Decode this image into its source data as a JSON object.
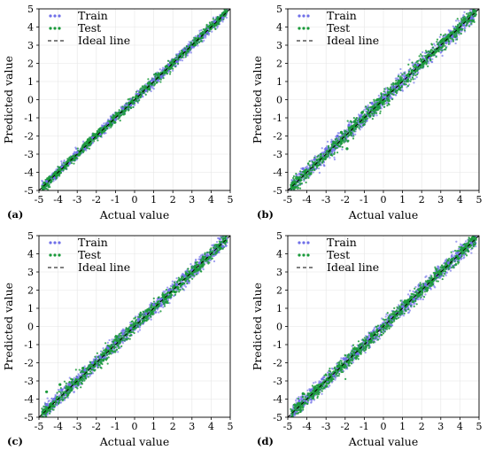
{
  "chart_data": [
    {
      "type": "scatter",
      "panel_label": "(a)",
      "xlabel": "Actual value",
      "ylabel": "Predicted value",
      "xlim": [
        -5,
        5
      ],
      "ylim": [
        -5,
        5
      ],
      "xticks": [
        -5,
        -4,
        -3,
        -2,
        -1,
        0,
        1,
        2,
        3,
        4,
        5
      ],
      "yticks": [
        -5,
        -4,
        -3,
        -2,
        -1,
        0,
        1,
        2,
        3,
        4,
        5
      ],
      "grid": true,
      "legend_position": "top-left",
      "series": [
        {
          "name": "Train",
          "color": "#6f6fe8",
          "marker": "dot",
          "x": [
            -4.6,
            -4.2,
            -3.8,
            -3.4,
            -3.0,
            -2.6,
            -2.2,
            -1.8,
            -1.4,
            -1.0,
            -0.6,
            -0.2,
            0.2,
            0.6,
            1.0,
            1.4,
            1.8,
            2.2,
            2.6,
            3.0,
            3.4,
            3.8,
            4.2,
            4.6
          ],
          "y": [
            -4.5,
            -4.3,
            -3.7,
            -3.5,
            -2.9,
            -2.7,
            -2.1,
            -1.9,
            -1.3,
            -1.1,
            -0.5,
            -0.3,
            0.3,
            0.5,
            1.1,
            1.3,
            1.9,
            2.1,
            2.7,
            2.9,
            3.5,
            3.7,
            4.3,
            4.5
          ]
        },
        {
          "name": "Test",
          "color": "#1a9a3a",
          "marker": "dot",
          "x": [
            -4.7,
            -4.1,
            -3.5,
            -2.9,
            -2.3,
            -1.7,
            -1.1,
            -0.5,
            0.1,
            0.7,
            1.3,
            1.9,
            2.5,
            3.1,
            3.7,
            4.3,
            4.7
          ],
          "y": [
            -4.6,
            -4.2,
            -3.4,
            -3.0,
            -2.2,
            -1.8,
            -1.0,
            -0.6,
            0.2,
            0.6,
            1.4,
            1.8,
            2.6,
            3.0,
            3.8,
            4.2,
            4.8
          ]
        },
        {
          "name": "Ideal line",
          "color": "#000000",
          "style": "dashed",
          "x": [
            -5,
            5
          ],
          "y": [
            -5,
            5
          ]
        }
      ]
    },
    {
      "type": "scatter",
      "panel_label": "(b)",
      "xlabel": "Actual value",
      "ylabel": "Predicted value",
      "xlim": [
        -5,
        5
      ],
      "ylim": [
        -5,
        5
      ],
      "xticks": [
        -5,
        -4,
        -3,
        -2,
        -1,
        0,
        1,
        2,
        3,
        4,
        5
      ],
      "yticks": [
        -5,
        -4,
        -3,
        -2,
        -1,
        0,
        1,
        2,
        3,
        4,
        5
      ],
      "grid": true,
      "legend_position": "top-left",
      "series": [
        {
          "name": "Train",
          "color": "#6f6fe8",
          "marker": "dot",
          "x": [
            -4.2,
            -3.6,
            -3.0,
            -2.4,
            -1.8,
            -1.2,
            -0.6,
            0.0,
            0.6,
            1.2,
            1.8,
            2.4,
            3.0,
            3.6,
            4.2,
            4.6
          ],
          "y": [
            -3.8,
            -3.3,
            -2.7,
            -2.0,
            -1.4,
            -0.9,
            -0.2,
            0.1,
            0.7,
            1.2,
            1.9,
            2.3,
            3.0,
            3.5,
            4.1,
            4.5
          ]
        },
        {
          "name": "Test",
          "color": "#1a9a3a",
          "marker": "dot",
          "x": [
            -2.6,
            -2.2,
            -1.9,
            -1.5,
            -1.1,
            -0.7,
            -0.3,
            0.3,
            0.9,
            1.5,
            2.1,
            2.7,
            3.3,
            3.9,
            4.5
          ],
          "y": [
            -2.4,
            -1.8,
            -2.7,
            -1.2,
            -0.7,
            -0.9,
            0.0,
            0.4,
            1.0,
            1.6,
            2.0,
            2.6,
            3.4,
            3.8,
            4.6
          ]
        },
        {
          "name": "Ideal line",
          "color": "#000000",
          "style": "dashed",
          "x": [
            -5,
            5
          ],
          "y": [
            -5,
            5
          ]
        }
      ]
    },
    {
      "type": "scatter",
      "panel_label": "(c)",
      "xlabel": "Actual value",
      "ylabel": "Predicted value",
      "xlim": [
        -5,
        5
      ],
      "ylim": [
        -5,
        5
      ],
      "xticks": [
        -5,
        -4,
        -3,
        -2,
        -1,
        0,
        1,
        2,
        3,
        4,
        5
      ],
      "yticks": [
        -5,
        -4,
        -3,
        -2,
        -1,
        0,
        1,
        2,
        3,
        4,
        5
      ],
      "grid": true,
      "legend_position": "top-left",
      "series": [
        {
          "name": "Train",
          "color": "#6f6fe8",
          "marker": "dot",
          "x": [
            -4.6,
            -4.2,
            -3.8,
            -3.4,
            -3.0,
            -2.6,
            -2.2,
            -1.8,
            -1.4,
            -1.0,
            -0.6,
            -0.2,
            0.2,
            0.6,
            1.0,
            1.4,
            1.8,
            2.2,
            2.6,
            3.0,
            3.4,
            3.8,
            4.2,
            4.6
          ],
          "y": [
            -4.3,
            -4.0,
            -3.5,
            -3.2,
            -2.8,
            -2.4,
            -2.0,
            -1.7,
            -1.2,
            -0.9,
            -0.4,
            -0.1,
            0.4,
            0.7,
            1.2,
            1.5,
            2.0,
            2.3,
            2.8,
            3.1,
            3.5,
            3.9,
            4.2,
            4.4
          ]
        },
        {
          "name": "Test",
          "color": "#1a9a3a",
          "marker": "dot",
          "x": [
            -4.6,
            -4.3,
            -3.9,
            -3.3,
            -2.7,
            -2.1,
            -1.5,
            -0.9,
            -0.3,
            0.3,
            0.9,
            1.5,
            2.1,
            2.7,
            3.3,
            3.9,
            4.5
          ],
          "y": [
            -3.6,
            -4.4,
            -3.2,
            -3.5,
            -2.3,
            -2.2,
            -1.3,
            -0.8,
            -0.2,
            0.6,
            0.8,
            1.7,
            1.9,
            2.9,
            3.1,
            3.8,
            4.3
          ]
        },
        {
          "name": "Ideal line",
          "color": "#000000",
          "style": "dashed",
          "x": [
            -5,
            5
          ],
          "y": [
            -5,
            5
          ]
        }
      ]
    },
    {
      "type": "scatter",
      "panel_label": "(d)",
      "xlabel": "Actual value",
      "ylabel": "Predicted value",
      "xlim": [
        -5,
        5
      ],
      "ylim": [
        -5,
        5
      ],
      "xticks": [
        -5,
        -4,
        -3,
        -2,
        -1,
        0,
        1,
        2,
        3,
        4,
        5
      ],
      "yticks": [
        -5,
        -4,
        -3,
        -2,
        -1,
        0,
        1,
        2,
        3,
        4,
        5
      ],
      "grid": true,
      "legend_position": "top-left",
      "series": [
        {
          "name": "Train",
          "color": "#6f6fe8",
          "marker": "dot",
          "x": [
            -4.4,
            -3.8,
            -3.2,
            -2.6,
            -2.0,
            -1.4,
            -0.8,
            -0.2,
            0.4,
            1.0,
            1.6,
            2.2,
            2.8,
            3.4,
            4.0,
            4.6
          ],
          "y": [
            -4.1,
            -3.5,
            -2.9,
            -2.7,
            -1.8,
            -1.5,
            -0.7,
            -0.1,
            0.5,
            1.1,
            1.5,
            2.3,
            2.8,
            3.5,
            3.9,
            4.6
          ]
        },
        {
          "name": "Test",
          "color": "#1a9a3a",
          "marker": "dot",
          "x": [
            -4.2,
            -3.6,
            -3.0,
            -2.4,
            -1.8,
            -1.2,
            -0.6,
            0.0,
            0.6,
            1.2,
            1.8,
            2.4,
            3.0,
            3.6,
            4.2,
            4.6
          ],
          "y": [
            -3.7,
            -3.4,
            -3.3,
            -2.2,
            -1.9,
            -1.0,
            -0.5,
            0.1,
            0.6,
            1.3,
            1.7,
            2.5,
            3.0,
            3.7,
            4.3,
            4.8
          ]
        },
        {
          "name": "Ideal line",
          "color": "#000000",
          "style": "dashed",
          "x": [
            -5,
            5
          ],
          "y": [
            -5,
            5
          ]
        }
      ]
    }
  ]
}
